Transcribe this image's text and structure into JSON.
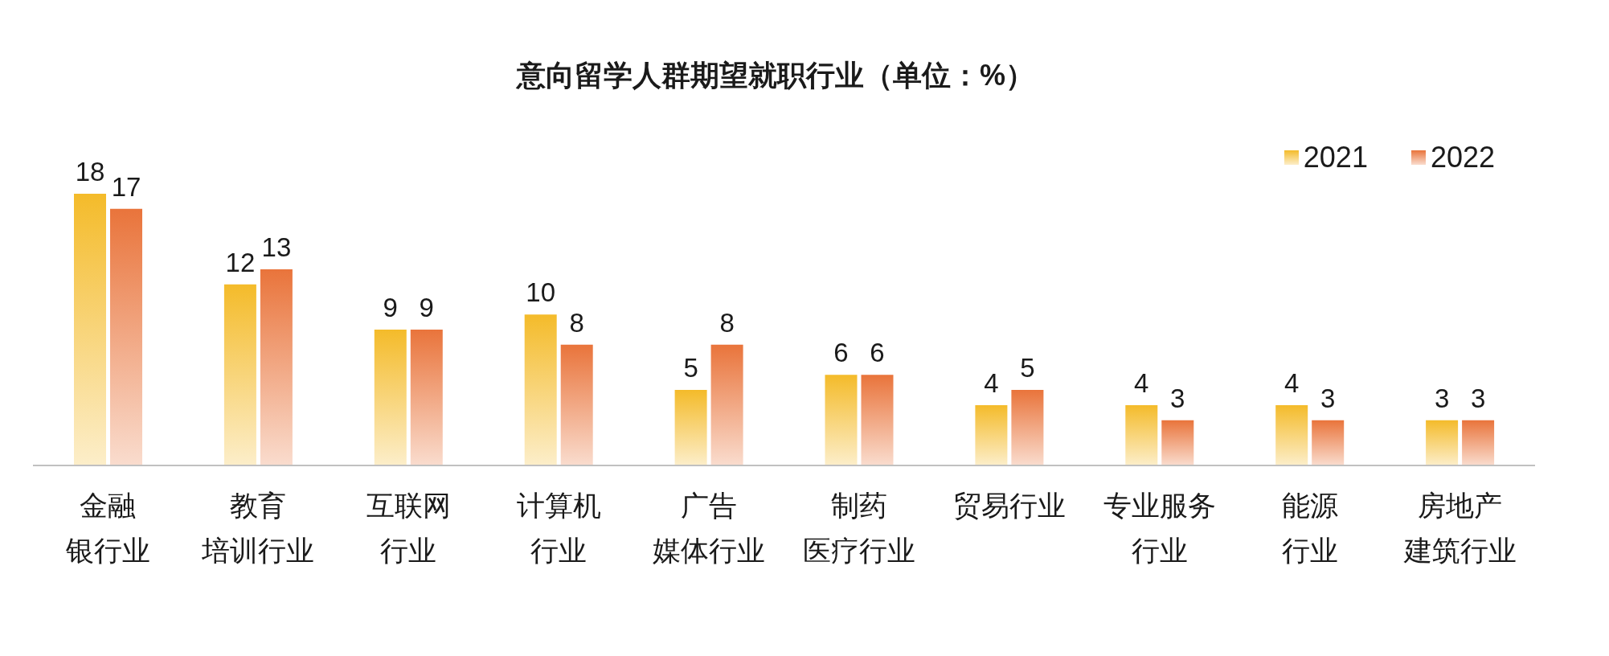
{
  "chart_data": {
    "type": "bar",
    "title": "意向留学人群期望就职行业（单位：%）",
    "categories": [
      "金融银行业",
      "教育培训行业",
      "互联网行业",
      "计算机行业",
      "广告媒体行业",
      "制药医疗行业",
      "贸易行业",
      "专业服务行业",
      "能源行业",
      "房地产建筑行业"
    ],
    "series": [
      {
        "name": "2021",
        "color": "#f4bb2a",
        "values": [
          18,
          12,
          9,
          10,
          5,
          6,
          4,
          4,
          4,
          3
        ]
      },
      {
        "name": "2022",
        "color": "#e9743b",
        "values": [
          17,
          13,
          9,
          8,
          8,
          6,
          5,
          3,
          3,
          3
        ]
      }
    ],
    "data_labels": true,
    "legend": "top right",
    "tick_labels": "x"
  }
}
